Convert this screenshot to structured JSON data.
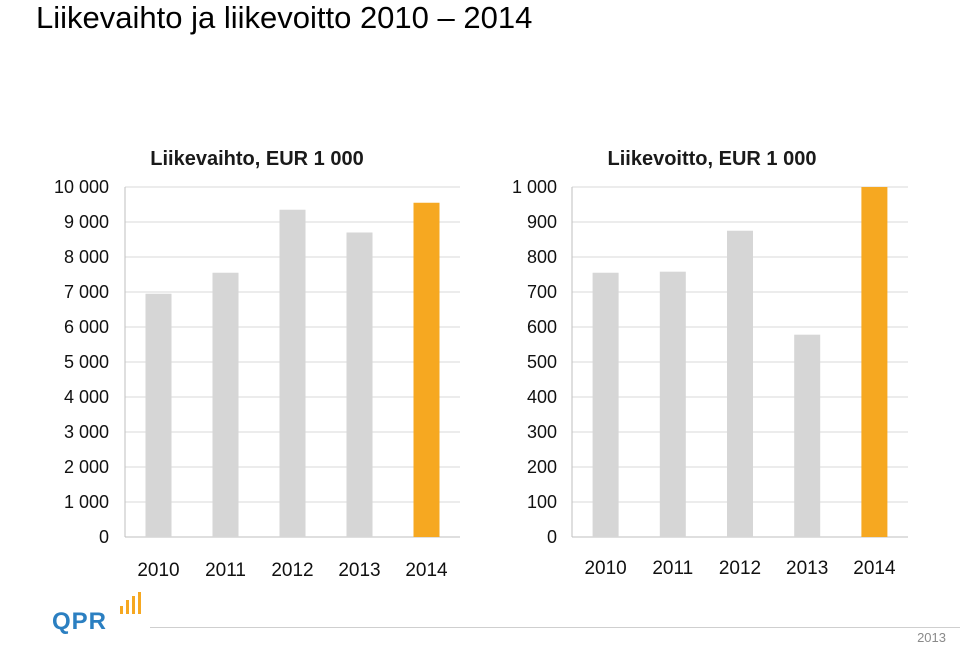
{
  "slide": {
    "title": "Liikevaihto ja liikevoitto 2010 – 2014",
    "footer_year": "2013",
    "logo_text": "QPR"
  },
  "colors": {
    "bar": "#d6d6d6",
    "highlight": "#f6a821",
    "logo": "#2b7fc1"
  },
  "chart_data": [
    {
      "type": "bar",
      "title": "Liikevaihto, EUR 1 000",
      "categories": [
        "2010",
        "2011",
        "2012",
        "2013",
        "2014"
      ],
      "values": [
        6950,
        7550,
        9350,
        8700,
        9550
      ],
      "highlight_index": 4,
      "ylim": [
        0,
        10000
      ],
      "yticks": [
        0,
        1000,
        2000,
        3000,
        4000,
        5000,
        6000,
        7000,
        8000,
        9000,
        10000
      ],
      "ytick_labels": [
        "0",
        "1 000",
        "2 000",
        "3 000",
        "4 000",
        "5 000",
        "6 000",
        "7 000",
        "8 000",
        "9 000",
        "10 000"
      ],
      "grid": true,
      "xlabel": "",
      "ylabel": ""
    },
    {
      "type": "bar",
      "title": "Liikevoitto, EUR 1 000",
      "categories": [
        "2010",
        "2011",
        "2012",
        "2013",
        "2014"
      ],
      "values": [
        755,
        758,
        875,
        578,
        1000
      ],
      "highlight_index": 4,
      "ylim": [
        0,
        1000
      ],
      "yticks": [
        0,
        100,
        200,
        300,
        400,
        500,
        600,
        700,
        800,
        900,
        1000
      ],
      "ytick_labels": [
        "0",
        "100",
        "200",
        "300",
        "400",
        "500",
        "600",
        "700",
        "800",
        "900",
        "1 000"
      ],
      "grid": true,
      "xlabel": "",
      "ylabel": ""
    }
  ]
}
